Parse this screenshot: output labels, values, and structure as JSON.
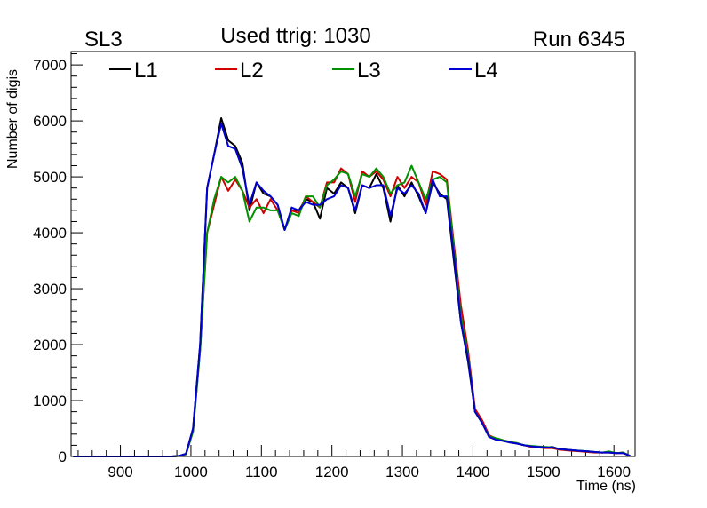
{
  "chart_data": {
    "type": "line",
    "title_left": "SL3",
    "title": "Used ttrig: 1030",
    "title_right": "Run 6345",
    "xlabel": "Time (ns)",
    "ylabel": "Number of digis",
    "xlim": [
      830,
      1630
    ],
    "ylim": [
      0,
      7240
    ],
    "xticks": [
      900,
      1000,
      1100,
      1200,
      1300,
      1400,
      1500,
      1600
    ],
    "yticks": [
      0,
      1000,
      2000,
      3000,
      4000,
      5000,
      6000,
      7000
    ],
    "legend_position": "top",
    "x": [
      833,
      843,
      853,
      863,
      873,
      883,
      893,
      903,
      913,
      923,
      933,
      943,
      953,
      963,
      973,
      983,
      993,
      1003,
      1013,
      1023,
      1033,
      1043,
      1053,
      1063,
      1073,
      1083,
      1093,
      1103,
      1113,
      1123,
      1133,
      1143,
      1153,
      1163,
      1173,
      1183,
      1193,
      1203,
      1213,
      1223,
      1233,
      1243,
      1253,
      1263,
      1273,
      1283,
      1293,
      1303,
      1313,
      1323,
      1333,
      1343,
      1353,
      1363,
      1373,
      1383,
      1393,
      1403,
      1413,
      1423,
      1433,
      1443,
      1453,
      1463,
      1473,
      1483,
      1493,
      1503,
      1513,
      1523,
      1533,
      1543,
      1553,
      1563,
      1573,
      1583,
      1593,
      1603,
      1613,
      1623
    ],
    "series": [
      {
        "name": "L1",
        "color": "#000000",
        "values": [
          0,
          0,
          0,
          0,
          0,
          0,
          0,
          0,
          0,
          0,
          0,
          0,
          0,
          0,
          0,
          10,
          50,
          500,
          2000,
          4800,
          5400,
          6050,
          5650,
          5550,
          5250,
          4400,
          4900,
          4700,
          4650,
          4500,
          4050,
          4400,
          4400,
          4600,
          4550,
          4250,
          4800,
          4700,
          4900,
          4800,
          4350,
          4850,
          4800,
          5050,
          4800,
          4200,
          4850,
          4650,
          4900,
          4650,
          4350,
          4900,
          4700,
          4600,
          3500,
          2400,
          1700,
          800,
          600,
          350,
          300,
          280,
          250,
          230,
          200,
          180,
          170,
          160,
          170,
          130,
          120,
          110,
          100,
          90,
          80,
          70,
          80,
          60,
          70,
          10
        ]
      },
      {
        "name": "L2",
        "color": "#d00000",
        "values": [
          0,
          0,
          0,
          0,
          0,
          0,
          0,
          0,
          0,
          0,
          0,
          0,
          0,
          0,
          0,
          10,
          40,
          450,
          1900,
          4000,
          4500,
          5000,
          4750,
          4950,
          4750,
          4450,
          4600,
          4350,
          4600,
          4400,
          4050,
          4400,
          4350,
          4650,
          4550,
          4450,
          4900,
          4900,
          5150,
          5050,
          4550,
          5100,
          5000,
          5100,
          4950,
          4650,
          5000,
          4800,
          5000,
          4900,
          4500,
          5100,
          5050,
          4950,
          3800,
          2700,
          1900,
          850,
          650,
          380,
          320,
          290,
          260,
          230,
          200,
          170,
          160,
          150,
          150,
          120,
          110,
          100,
          90,
          80,
          70,
          70,
          70,
          60,
          60,
          10
        ]
      },
      {
        "name": "L3",
        "color": "#009000",
        "values": [
          0,
          0,
          0,
          0,
          0,
          0,
          0,
          0,
          0,
          0,
          0,
          0,
          0,
          0,
          0,
          10,
          40,
          450,
          1900,
          4000,
          4600,
          5000,
          4900,
          5000,
          4750,
          4200,
          4450,
          4450,
          4400,
          4400,
          4050,
          4350,
          4300,
          4650,
          4650,
          4450,
          4850,
          4950,
          5100,
          5050,
          4650,
          5050,
          5000,
          5150,
          5000,
          4700,
          4850,
          4900,
          5200,
          4900,
          4600,
          4950,
          5000,
          4900,
          3700,
          2500,
          1800,
          800,
          600,
          360,
          330,
          290,
          260,
          240,
          200,
          190,
          180,
          170,
          160,
          130,
          120,
          110,
          100,
          90,
          80,
          70,
          90,
          60,
          70,
          10
        ]
      },
      {
        "name": "L4",
        "color": "#0000d0",
        "values": [
          0,
          0,
          0,
          0,
          0,
          0,
          0,
          0,
          0,
          0,
          0,
          0,
          0,
          0,
          0,
          10,
          50,
          500,
          2000,
          4800,
          5400,
          5950,
          5550,
          5500,
          5150,
          4500,
          4900,
          4750,
          4650,
          4500,
          4050,
          4450,
          4400,
          4550,
          4500,
          4500,
          4600,
          4650,
          4850,
          4800,
          4400,
          4850,
          4800,
          4850,
          4850,
          4300,
          4800,
          4700,
          4850,
          4700,
          4350,
          4950,
          4650,
          4650,
          3600,
          2400,
          1750,
          800,
          600,
          350,
          300,
          280,
          250,
          230,
          200,
          180,
          170,
          160,
          160,
          130,
          120,
          110,
          100,
          90,
          80,
          70,
          70,
          60,
          60,
          10
        ]
      }
    ]
  }
}
